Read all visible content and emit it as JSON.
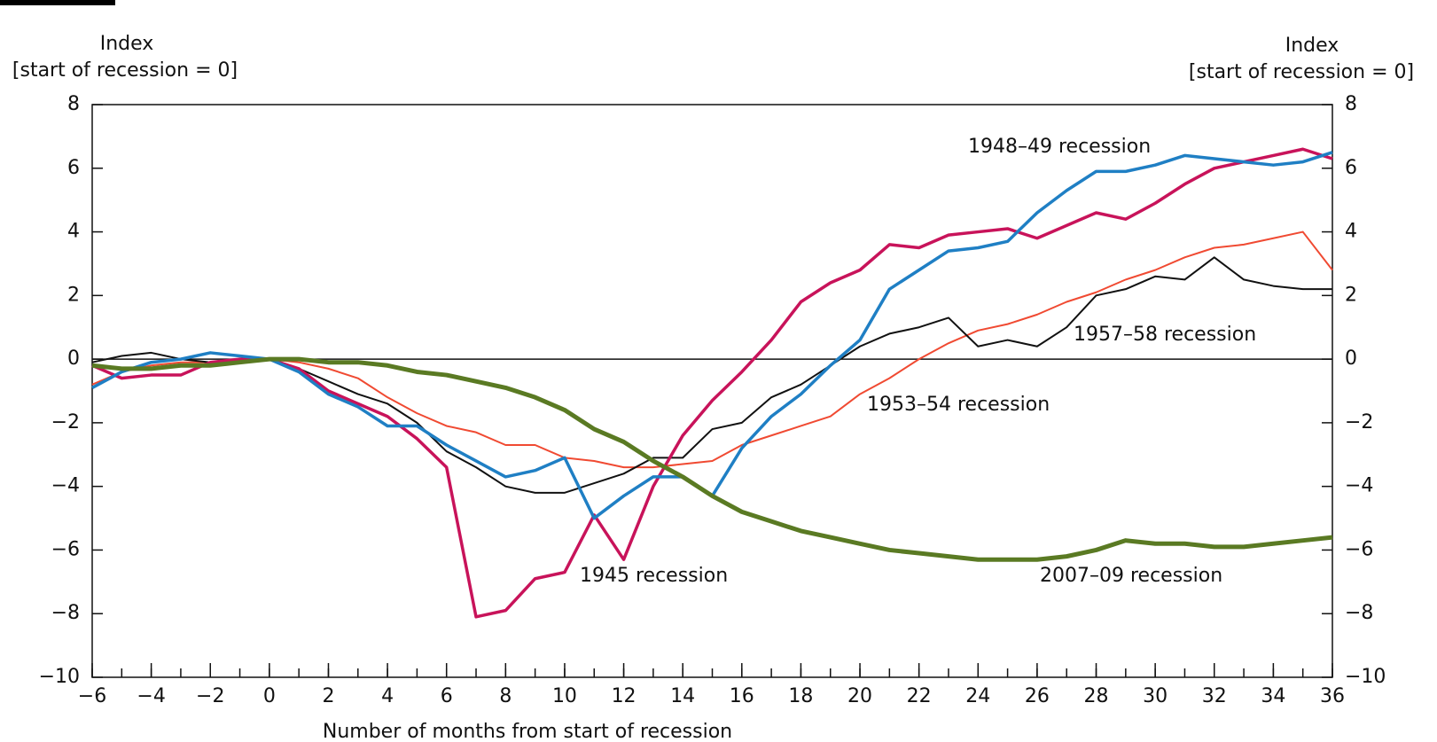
{
  "chart_data": {
    "type": "line",
    "ylabel": [
      "Index",
      "[start of recession = 0]"
    ],
    "y2label": [
      "Index",
      "[start of recession = 0]"
    ],
    "xlabel": "Number of months from start of recession",
    "x": [
      -6,
      -5,
      -4,
      -3,
      -2,
      -1,
      0,
      1,
      2,
      3,
      4,
      5,
      6,
      7,
      8,
      9,
      10,
      11,
      12,
      13,
      14,
      15,
      16,
      17,
      18,
      19,
      20,
      21,
      22,
      23,
      24,
      25,
      26,
      27,
      28,
      29,
      30,
      31,
      32,
      33,
      34,
      35,
      36
    ],
    "series": [
      {
        "name": "1953–54 recession",
        "color": "#f04a32",
        "width": 2,
        "values": [
          -0.8,
          -0.4,
          -0.2,
          -0.1,
          -0.1,
          0,
          0,
          -0.1,
          -0.3,
          -0.6,
          -1.2,
          -1.7,
          -2.1,
          -2.3,
          -2.7,
          -2.7,
          -3.1,
          -3.2,
          -3.4,
          -3.4,
          -3.3,
          -3.2,
          -2.7,
          -2.4,
          -2.1,
          -1.8,
          -1.1,
          -0.6,
          0,
          0.5,
          0.9,
          1.1,
          1.4,
          1.8,
          2.1,
          2.5,
          2.8,
          3.2,
          3.5,
          3.6,
          3.8,
          4.0,
          2.8
        ]
      },
      {
        "name": "1957–58 recession",
        "color": "#111111",
        "width": 2,
        "values": [
          -0.1,
          0.1,
          0.2,
          0,
          -0.1,
          0,
          0,
          -0.3,
          -0.7,
          -1.1,
          -1.4,
          -2.0,
          -2.9,
          -3.4,
          -4.0,
          -4.2,
          -4.2,
          -3.9,
          -3.6,
          -3.1,
          -3.1,
          -2.2,
          -2.0,
          -1.2,
          -0.8,
          -0.2,
          0.4,
          0.8,
          1.0,
          1.3,
          0.4,
          0.6,
          0.4,
          1.0,
          2.0,
          2.2,
          2.6,
          2.5,
          3.2,
          2.5,
          2.3,
          2.2,
          2.2
        ]
      },
      {
        "name": "1945 recession",
        "color": "#c8135a",
        "width": 3.5,
        "values": [
          -0.2,
          -0.6,
          -0.5,
          -0.5,
          -0.1,
          0,
          0,
          -0.3,
          -1.0,
          -1.4,
          -1.8,
          -2.5,
          -3.4,
          -8.1,
          -7.9,
          -6.9,
          -6.7,
          -4.9,
          -6.3,
          -4.0,
          -2.4,
          -1.3,
          -0.4,
          0.6,
          1.8,
          2.4,
          2.8,
          3.6,
          3.5,
          3.9,
          4.0,
          4.1,
          3.8,
          4.2,
          4.6,
          4.4,
          4.9,
          5.5,
          6.0,
          6.2,
          6.4,
          6.6,
          6.3
        ]
      },
      {
        "name": "1948–49 recession",
        "color": "#1f7fc4",
        "width": 3.5,
        "values": [
          -0.9,
          -0.4,
          -0.1,
          0,
          0.2,
          0.1,
          0,
          -0.4,
          -1.1,
          -1.5,
          -2.1,
          -2.1,
          -2.7,
          -3.2,
          -3.7,
          -3.5,
          -3.1,
          -5.0,
          -4.3,
          -3.7,
          -3.7,
          -4.3,
          -2.8,
          -1.8,
          -1.1,
          -0.2,
          0.6,
          2.2,
          2.8,
          3.4,
          3.5,
          3.7,
          4.6,
          5.3,
          5.9,
          5.9,
          6.1,
          6.4,
          6.3,
          6.2,
          6.1,
          6.2,
          6.5
        ]
      },
      {
        "name": "2007–09 recession",
        "color": "#5a7a23",
        "width": 5,
        "values": [
          -0.2,
          -0.3,
          -0.3,
          -0.2,
          -0.2,
          -0.1,
          0,
          0,
          -0.1,
          -0.1,
          -0.2,
          -0.4,
          -0.5,
          -0.7,
          -0.9,
          -1.2,
          -1.6,
          -2.2,
          -2.6,
          -3.2,
          -3.7,
          -4.3,
          -4.8,
          -5.1,
          -5.4,
          -5.6,
          -5.8,
          -6.0,
          -6.1,
          -6.2,
          -6.3,
          -6.3,
          -6.3,
          -6.2,
          -6.0,
          -5.7,
          -5.8,
          -5.8,
          -5.9,
          -5.9,
          -5.8,
          -5.7,
          -5.6
        ]
      }
    ],
    "xlim": [
      -6,
      36
    ],
    "xticks": [
      {
        "value": -6,
        "label": "−6"
      },
      {
        "value": -4,
        "label": "−4"
      },
      {
        "value": -2,
        "label": "−2"
      },
      0,
      2,
      4,
      6,
      8,
      10,
      12,
      14,
      16,
      18,
      20,
      22,
      24,
      26,
      28,
      30,
      32,
      34,
      36
    ],
    "ylim": [
      -10,
      8
    ],
    "yticks": [
      {
        "value": -10,
        "label": "−10"
      },
      {
        "value": -8,
        "label": "−8"
      },
      {
        "value": -6,
        "label": "−6"
      },
      {
        "value": -4,
        "label": "−4"
      },
      {
        "value": -2,
        "label": "−2"
      },
      0,
      2,
      4,
      6,
      8
    ],
    "y2lim": [
      -10,
      8
    ],
    "y2ticks": [
      {
        "value": -10,
        "label": "−10"
      },
      {
        "value": -8,
        "label": "−8"
      },
      {
        "value": -6,
        "label": "−6"
      },
      {
        "value": -4,
        "label": "−4"
      },
      {
        "value": -2,
        "label": "−2"
      },
      0,
      2,
      4,
      6,
      8
    ]
  }
}
